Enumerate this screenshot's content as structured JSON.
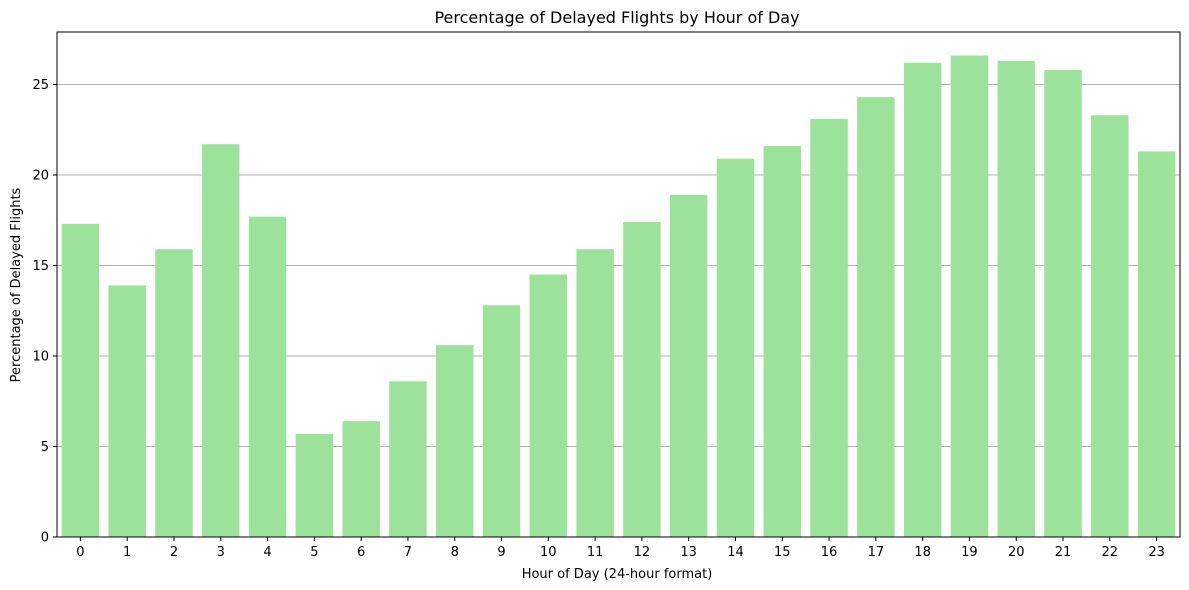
{
  "chart_data": {
    "type": "bar",
    "title": "Percentage of Delayed Flights by Hour of Day",
    "xlabel": "Hour of Day (24-hour format)",
    "ylabel": "Percentage of Delayed Flights",
    "categories": [
      "0",
      "1",
      "2",
      "3",
      "4",
      "5",
      "6",
      "7",
      "8",
      "9",
      "10",
      "11",
      "12",
      "13",
      "14",
      "15",
      "16",
      "17",
      "18",
      "19",
      "20",
      "21",
      "22",
      "23"
    ],
    "values": [
      17.3,
      13.9,
      15.9,
      21.7,
      17.7,
      5.7,
      6.4,
      8.6,
      10.6,
      12.8,
      14.5,
      15.9,
      17.4,
      18.9,
      20.9,
      21.6,
      23.1,
      24.3,
      26.2,
      26.6,
      26.3,
      25.8,
      23.3,
      21.3
    ],
    "ylim": [
      0,
      27.9
    ],
    "yticks": [
      0,
      5,
      10,
      15,
      20,
      25
    ],
    "grid": "y",
    "legend": "none",
    "bar_color": "#9de29b",
    "grid_color": "#b0b0b0",
    "axis_color": "#000000"
  }
}
